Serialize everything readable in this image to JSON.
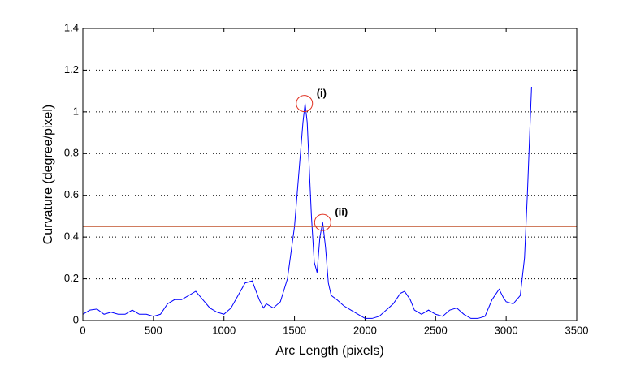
{
  "chart_data": {
    "type": "line",
    "xlabel": "Arc Length (pixels)",
    "ylabel": "Curvature (degree/pixel)",
    "xlim": [
      0,
      3500
    ],
    "ylim": [
      0,
      1.4
    ],
    "xticks": [
      0,
      500,
      1000,
      1500,
      2000,
      2500,
      3000,
      3500
    ],
    "yticks": [
      0,
      0.2,
      0.4,
      0.6,
      0.8,
      1,
      1.2,
      1.4
    ],
    "grid": "y",
    "series": [
      {
        "color": "#0000ff",
        "x": [
          0,
          50,
          100,
          150,
          200,
          250,
          300,
          350,
          400,
          450,
          500,
          550,
          600,
          650,
          700,
          750,
          800,
          850,
          900,
          950,
          1000,
          1050,
          1100,
          1150,
          1200,
          1250,
          1280,
          1300,
          1350,
          1400,
          1450,
          1500,
          1530,
          1560,
          1575,
          1590,
          1620,
          1640,
          1660,
          1680,
          1700,
          1720,
          1740,
          1760,
          1800,
          1850,
          1900,
          1950,
          2000,
          2050,
          2100,
          2150,
          2200,
          2250,
          2280,
          2320,
          2350,
          2400,
          2450,
          2500,
          2550,
          2600,
          2650,
          2700,
          2750,
          2800,
          2850,
          2900,
          2950,
          2980,
          3000,
          3050,
          3100,
          3130,
          3150,
          3170,
          3180
        ],
        "values": [
          0.03,
          0.05,
          0.055,
          0.03,
          0.04,
          0.03,
          0.03,
          0.05,
          0.03,
          0.03,
          0.02,
          0.03,
          0.08,
          0.1,
          0.1,
          0.12,
          0.14,
          0.1,
          0.06,
          0.04,
          0.03,
          0.06,
          0.12,
          0.18,
          0.19,
          0.1,
          0.06,
          0.08,
          0.06,
          0.09,
          0.2,
          0.45,
          0.7,
          0.95,
          1.04,
          0.95,
          0.5,
          0.28,
          0.23,
          0.4,
          0.47,
          0.35,
          0.18,
          0.12,
          0.1,
          0.07,
          0.05,
          0.03,
          0.01,
          0.01,
          0.02,
          0.05,
          0.08,
          0.13,
          0.14,
          0.1,
          0.05,
          0.03,
          0.05,
          0.03,
          0.02,
          0.05,
          0.06,
          0.03,
          0.01,
          0.01,
          0.02,
          0.1,
          0.15,
          0.11,
          0.09,
          0.08,
          0.12,
          0.3,
          0.6,
          0.95,
          1.12
        ]
      }
    ],
    "hlines": [
      {
        "value": 0.45,
        "color": "#c0502a"
      }
    ],
    "annotations": [
      {
        "text": "(i)",
        "x": 1570,
        "y": 1.04,
        "color": "#e03020"
      },
      {
        "text": "(ii)",
        "x": 1700,
        "y": 0.47,
        "color": "#e03020"
      }
    ]
  }
}
